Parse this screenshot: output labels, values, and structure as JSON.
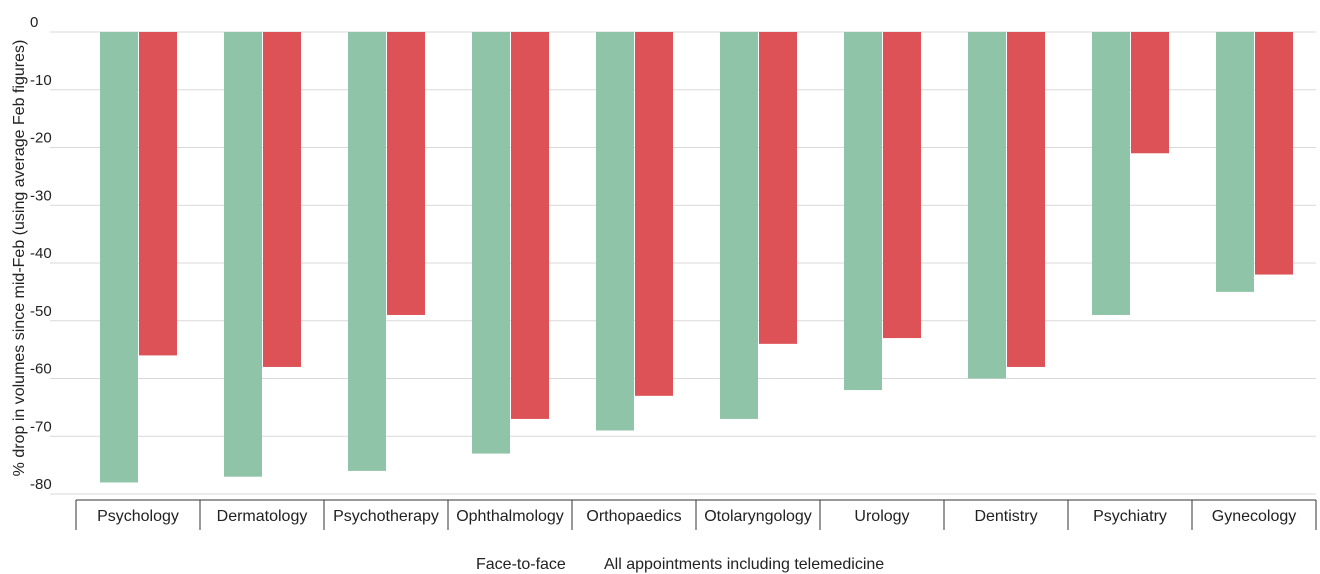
{
  "chart_data": {
    "type": "bar",
    "title": "",
    "xlabel": "",
    "ylabel": "% drop in volumes since mid-Feb (using average Feb figures)",
    "ylim": [
      -80,
      0
    ],
    "yticks": [
      0,
      -10,
      -20,
      -30,
      -40,
      -50,
      -60,
      -70,
      -80
    ],
    "grid": true,
    "legend_position": "bottom-center",
    "categories": [
      "Psychology",
      "Dermatology",
      "Psychotherapy",
      "Ophthalmology",
      "Orthopaedics",
      "Otolaryngology",
      "Urology",
      "Dentistry",
      "Psychiatry",
      "Gynecology"
    ],
    "series": [
      {
        "name": "Face-to-face",
        "color": "#8fc4a8",
        "values": [
          -78,
          -77,
          -76,
          -73,
          -69,
          -67,
          -62,
          -60,
          -49,
          -45
        ]
      },
      {
        "name": "All appointments including telemedicine",
        "color": "#dd5257",
        "values": [
          -56,
          -58,
          -49,
          -67,
          -63,
          -54,
          -53,
          -58,
          -21,
          -42
        ]
      }
    ]
  }
}
